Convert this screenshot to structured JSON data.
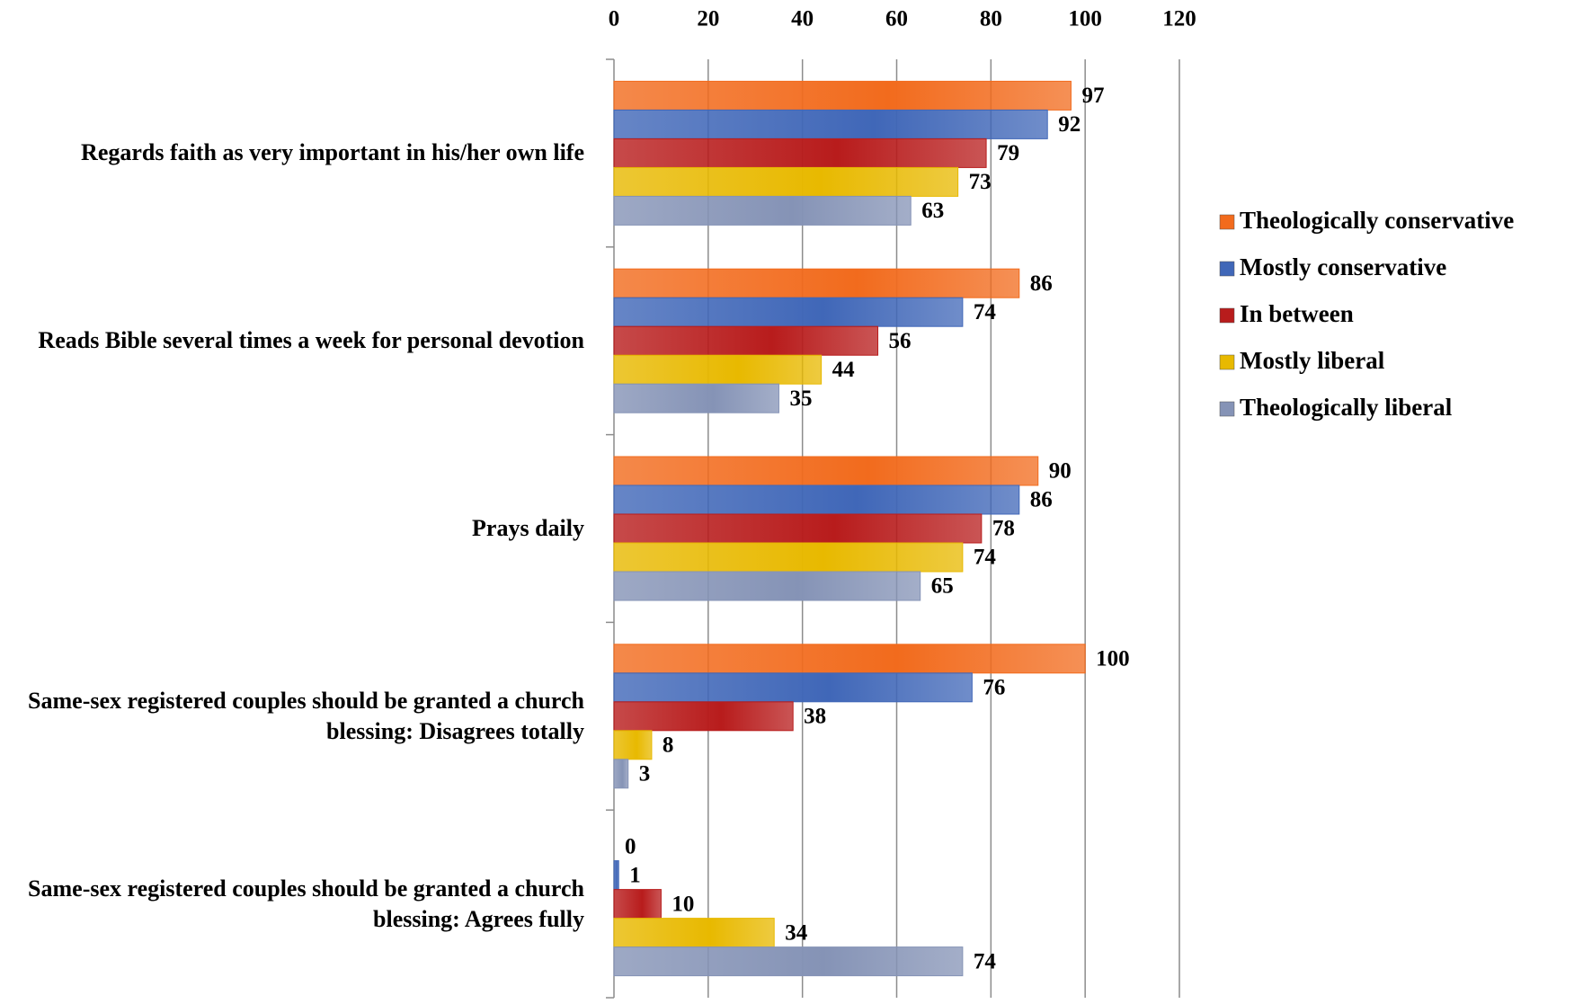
{
  "chart_data": {
    "type": "bar",
    "orientation": "horizontal",
    "categories": [
      "Regards faith as very important in his/her own life",
      "Reads Bible several times a week for personal devotion",
      "Prays daily",
      "Same-sex registered couples should be granted a church blessing: Disagrees totally",
      "Same-sex registered couples should be granted a church blessing: Agrees fully"
    ],
    "series": [
      {
        "name": "Theologically conservative",
        "color": "#f26b1d",
        "values": [
          97,
          86,
          90,
          100,
          0
        ]
      },
      {
        "name": "Mostly conservative",
        "color": "#4067b8",
        "values": [
          92,
          74,
          86,
          76,
          1
        ]
      },
      {
        "name": "In between",
        "color": "#b81c1c",
        "values": [
          79,
          56,
          78,
          38,
          10
        ]
      },
      {
        "name": "Mostly liberal",
        "color": "#e8b900",
        "values": [
          73,
          44,
          74,
          8,
          34
        ]
      },
      {
        "name": "Theologically liberal",
        "color": "#8593b6",
        "values": [
          63,
          35,
          65,
          3,
          74
        ]
      }
    ],
    "xlim": [
      0,
      120
    ],
    "xticks": [
      0,
      20,
      40,
      60,
      80,
      100,
      120
    ],
    "grid": true,
    "legend": "right"
  }
}
